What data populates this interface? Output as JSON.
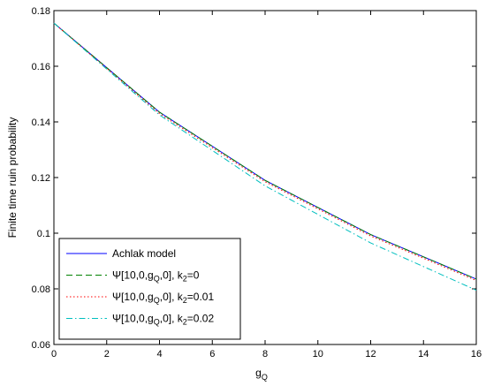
{
  "chart_data": {
    "type": "line",
    "xlabel": "g",
    "xlabel_sub": "Q",
    "ylabel": "Finite time ruin probability",
    "xlim": [
      0,
      16
    ],
    "ylim": [
      0.06,
      0.18
    ],
    "grid": false,
    "legend_position": "bottom-left",
    "x_ticks": [
      "0",
      "2",
      "4",
      "6",
      "8",
      "10",
      "12",
      "14",
      "16"
    ],
    "y_ticks": [
      "0.06",
      "0.08",
      "0.1",
      "0.12",
      "0.14",
      "0.16",
      "0.18"
    ],
    "series": [
      {
        "name": "Achlak model",
        "style": "solid",
        "color": "#0000ff",
        "x": [
          0,
          4,
          8,
          12,
          16
        ],
        "y": [
          0.1755,
          0.1435,
          0.119,
          0.0995,
          0.0835
        ]
      },
      {
        "name_parts": {
          "pre": "Ψ[10,0,g",
          "sub": "Q",
          "mid": ",0], k",
          "sub2": "2",
          "post": "=0"
        },
        "style": "dashed",
        "color": "#008000",
        "x": [
          0,
          4,
          8,
          12,
          16
        ],
        "y": [
          0.1755,
          0.1435,
          0.119,
          0.0995,
          0.0835
        ]
      },
      {
        "name_parts": {
          "pre": "Ψ[10,0,g",
          "sub": "Q",
          "mid": ",0], k",
          "sub2": "2",
          "post": "=0.01"
        },
        "style": "dotted",
        "color": "#ff0000",
        "x": [
          0,
          4,
          8,
          12,
          16
        ],
        "y": [
          0.1755,
          0.143,
          0.1185,
          0.099,
          0.083
        ]
      },
      {
        "name_parts": {
          "pre": "Ψ[10,0,g",
          "sub": "Q",
          "mid": ",0], k",
          "sub2": "2",
          "post": "=0.02"
        },
        "style": "dashdot",
        "color": "#00bfbf",
        "x": [
          0,
          4,
          8,
          12,
          16
        ],
        "y": [
          0.1755,
          0.1425,
          0.117,
          0.0965,
          0.0795
        ]
      }
    ]
  }
}
